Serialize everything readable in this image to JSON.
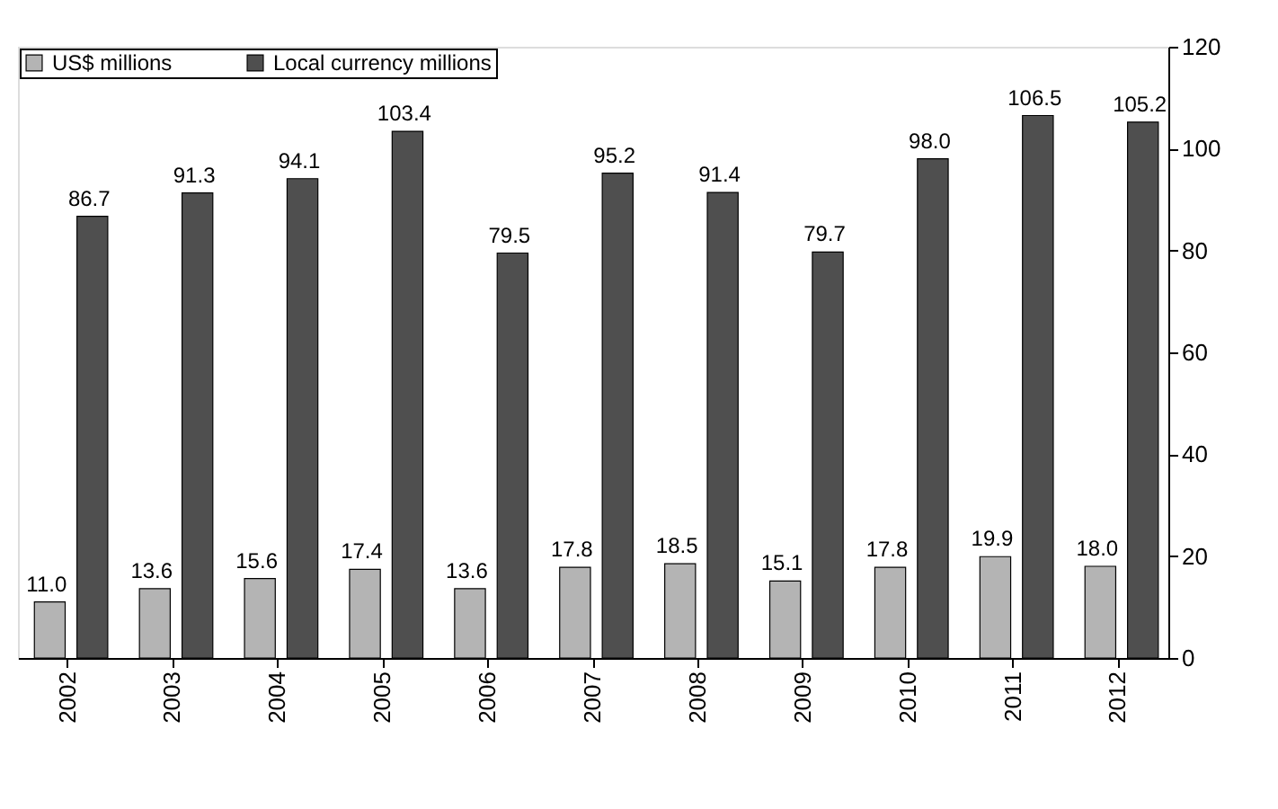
{
  "chart_data": {
    "type": "bar",
    "categories": [
      "2002",
      "2003",
      "2004",
      "2005",
      "2006",
      "2007",
      "2008",
      "2009",
      "2010",
      "2011",
      "2012"
    ],
    "series": [
      {
        "name": "US$ millions",
        "color": "#b4b4b4",
        "values": [
          11.0,
          13.6,
          15.6,
          17.4,
          13.6,
          17.8,
          18.5,
          15.1,
          17.8,
          19.9,
          18.0
        ],
        "value_labels": [
          "11.0",
          "13.6",
          "15.6",
          "17.4",
          "13.6",
          "17.8",
          "18.5",
          "15.1",
          "17.8",
          "19.9",
          "18.0"
        ]
      },
      {
        "name": "Local currency millions",
        "color": "#4f4f4f",
        "values": [
          86.7,
          91.3,
          94.1,
          103.4,
          79.5,
          95.2,
          91.4,
          79.7,
          98.0,
          106.5,
          105.2
        ],
        "value_labels": [
          "86.7",
          "91.3",
          "94.1",
          "103.4",
          "79.5",
          "95.2",
          "91.4",
          "79.7",
          "98.0",
          "106.5",
          "105.2"
        ]
      }
    ],
    "ylim": [
      0,
      120
    ],
    "yticks": [
      0,
      20,
      40,
      60,
      80,
      100,
      120
    ],
    "grid": false,
    "legend": "top left"
  }
}
